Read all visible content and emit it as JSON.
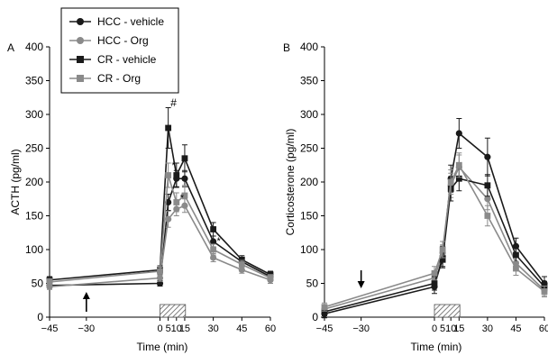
{
  "legend": [
    {
      "label": "HCC - vehicle",
      "marker": "circle",
      "color": "#1a1a1a"
    },
    {
      "label": "HCC - Org",
      "marker": "circle",
      "color": "#8a8a8a"
    },
    {
      "label": "CR - vehicle",
      "marker": "square",
      "color": "#1a1a1a"
    },
    {
      "label": "CR - Org",
      "marker": "square",
      "color": "#8a8a8a"
    }
  ],
  "chart_data": [
    {
      "type": "line",
      "panel": "A",
      "xlabel": "Time (min)",
      "ylabel": "ACTH (pg/ml)",
      "ylim": [
        0,
        400
      ],
      "yticks": [
        0,
        50,
        100,
        150,
        200,
        250,
        300,
        350,
        400
      ],
      "xticks": [
        -45,
        -30,
        0,
        5,
        10,
        15,
        30,
        45,
        60
      ],
      "x": [
        -45,
        0,
        5,
        10,
        15,
        30,
        45,
        60
      ],
      "series": [
        {
          "name": "HCC - vehicle",
          "values": [
            47,
            50,
            170,
            205,
            205,
            112,
            82,
            60
          ],
          "err": [
            4,
            4,
            12,
            12,
            12,
            8,
            6,
            5
          ]
        },
        {
          "name": "HCC - Org",
          "values": [
            45,
            58,
            145,
            160,
            165,
            88,
            70,
            55
          ],
          "err": [
            4,
            5,
            12,
            10,
            10,
            6,
            5,
            5
          ]
        },
        {
          "name": "CR - vehicle",
          "values": [
            55,
            70,
            280,
            210,
            235,
            130,
            85,
            63
          ],
          "err": [
            5,
            6,
            30,
            18,
            20,
            10,
            6,
            5
          ]
        },
        {
          "name": "CR - Org",
          "values": [
            52,
            68,
            210,
            170,
            180,
            100,
            78,
            58
          ],
          "err": [
            5,
            6,
            18,
            14,
            15,
            8,
            6,
            5
          ]
        }
      ],
      "annotations": [
        {
          "text": "#",
          "x": 5,
          "y": 312
        },
        {
          "text": "*",
          "x": 5,
          "y": 220
        },
        {
          "text": "*",
          "x": 10,
          "y": 172
        },
        {
          "text": "*",
          "x": 30,
          "y": 108
        }
      ],
      "arrow": {
        "x": -30,
        "direction": "up"
      },
      "hatched_bar": {
        "x_from": 0,
        "x_to": 10
      }
    },
    {
      "type": "line",
      "panel": "B",
      "xlabel": "Time (min)",
      "ylabel": "Corticosterone (pg/ml)",
      "ylim": [
        0,
        400
      ],
      "yticks": [
        0,
        50,
        100,
        150,
        200,
        250,
        300,
        350,
        400
      ],
      "xticks": [
        -45,
        -30,
        0,
        5,
        10,
        15,
        30,
        45,
        60
      ],
      "x": [
        -45,
        0,
        5,
        10,
        15,
        30,
        45,
        60
      ],
      "series": [
        {
          "name": "HCC - vehicle",
          "values": [
            5,
            45,
            90,
            205,
            272,
            237,
            105,
            50
          ],
          "err": [
            6,
            10,
            15,
            20,
            22,
            28,
            12,
            10
          ]
        },
        {
          "name": "HCC - Org",
          "values": [
            12,
            58,
            95,
            195,
            222,
            175,
            80,
            40
          ],
          "err": [
            6,
            10,
            12,
            18,
            18,
            16,
            10,
            8
          ]
        },
        {
          "name": "CR - vehicle",
          "values": [
            8,
            50,
            85,
            190,
            205,
            195,
            92,
            45
          ],
          "err": [
            6,
            10,
            12,
            18,
            18,
            16,
            10,
            8
          ]
        },
        {
          "name": "CR - Org",
          "values": [
            15,
            65,
            100,
            200,
            225,
            150,
            72,
            38
          ],
          "err": [
            6,
            10,
            12,
            18,
            18,
            15,
            10,
            8
          ]
        }
      ],
      "annotations": [],
      "arrow": {
        "x": -30,
        "direction": "down"
      },
      "hatched_bar": {
        "x_from": 0,
        "x_to": 10
      }
    }
  ]
}
